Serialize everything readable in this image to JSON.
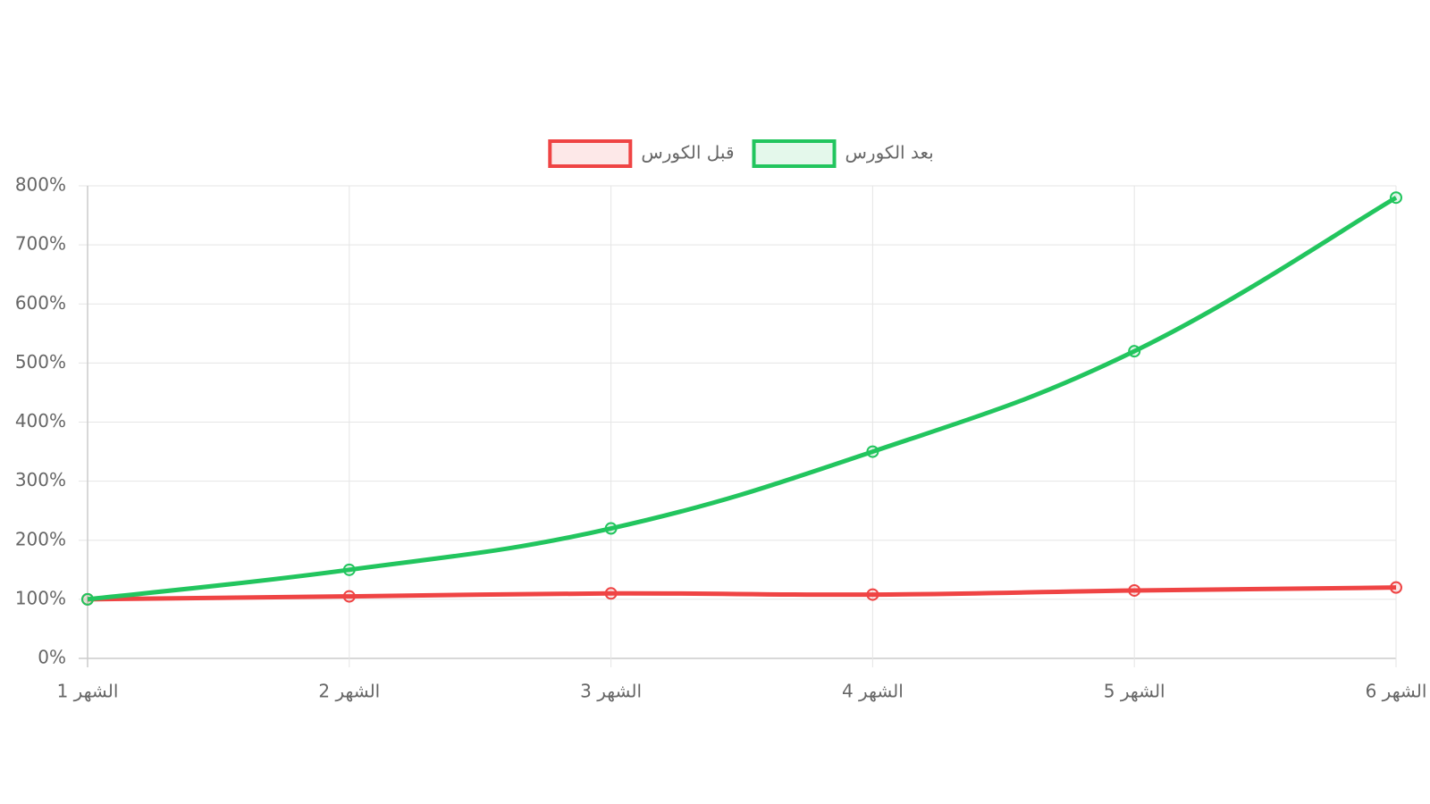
{
  "chart_data": {
    "type": "line",
    "categories": [
      "الشهر 1",
      "الشهر 2",
      "الشهر 3",
      "الشهر 4",
      "الشهر 5",
      "الشهر 6"
    ],
    "series": [
      {
        "name": "قبل الكورس",
        "color": "#ef4444",
        "values": [
          100,
          105,
          110,
          108,
          115,
          120
        ]
      },
      {
        "name": "بعد الكورس",
        "color": "#22c55e",
        "values": [
          100,
          150,
          220,
          350,
          520,
          780
        ]
      }
    ],
    "ylim": [
      0,
      800
    ],
    "yticks": [
      {
        "value": 0,
        "label": "0%"
      },
      {
        "value": 100,
        "label": "100%"
      },
      {
        "value": 200,
        "label": "200%"
      },
      {
        "value": 300,
        "label": "300%"
      },
      {
        "value": 400,
        "label": "400%"
      },
      {
        "value": 500,
        "label": "500%"
      },
      {
        "value": 600,
        "label": "600%"
      },
      {
        "value": 700,
        "label": "700%"
      },
      {
        "value": 800,
        "label": "800%"
      }
    ],
    "grid": true,
    "legend": "top"
  }
}
